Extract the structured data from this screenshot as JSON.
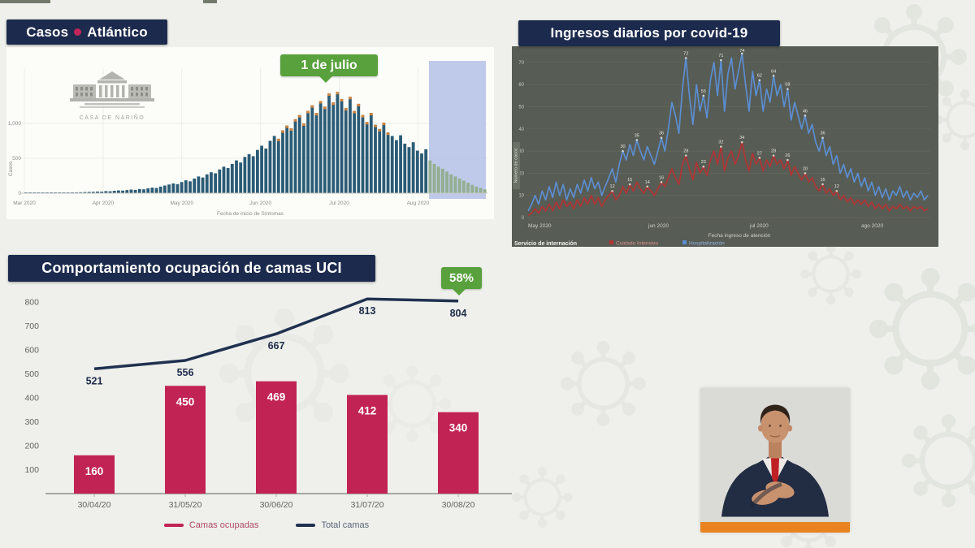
{
  "frame": {
    "casos_title": "Casos",
    "casos_region": "Atlántico",
    "logo_caption": "CASA DE NARIÑO",
    "julio_badge": "1 de julio",
    "ingresos_title": "Ingresos diarios por covid-19",
    "uci_title": "Comportamiento ocupación de camas UCI",
    "uci_badge": "58%"
  },
  "chart_data": [
    {
      "id": "casos-epidemic-curve",
      "type": "bar",
      "title": "Casos Atlántico",
      "xlabel": "Fecha de inicio de Síntomas",
      "ylabel": "Casos",
      "x_tick_labels": [
        "Mar 2020",
        "Apr 2020",
        "May 2020",
        "Jun 2020",
        "Jul 2020",
        "Aug 2020"
      ],
      "yticks": [
        0,
        500,
        1000
      ],
      "ytick_labels": [
        "0",
        "500",
        "1,000"
      ],
      "annotation": "1 de julio",
      "bar_color": "#2b5b76",
      "tip_color": "#d2853e",
      "orange_tip_range": [
        60,
        86
      ],
      "highlight_color": "#b8c4e8",
      "highlight_bar_color": "#93ae90",
      "highlight_start_index": 96,
      "values": [
        2,
        3,
        2,
        4,
        3,
        5,
        4,
        6,
        8,
        7,
        10,
        12,
        10,
        14,
        16,
        18,
        20,
        24,
        22,
        30,
        28,
        35,
        40,
        38,
        45,
        52,
        48,
        60,
        56,
        70,
        80,
        75,
        95,
        110,
        125,
        140,
        130,
        160,
        185,
        170,
        210,
        240,
        225,
        270,
        300,
        285,
        340,
        380,
        360,
        420,
        470,
        440,
        520,
        560,
        530,
        620,
        680,
        640,
        750,
        820,
        780,
        900,
        970,
        930,
        1060,
        1120,
        1000,
        1180,
        1260,
        1150,
        1320,
        1240,
        1430,
        1300,
        1450,
        1350,
        1220,
        1380,
        1180,
        1280,
        1120,
        1020,
        1150,
        980,
        920,
        1010,
        870,
        820,
        760,
        830,
        710,
        660,
        730,
        610,
        570,
        630,
        470,
        420,
        380,
        350,
        310,
        270,
        240,
        210,
        180,
        150,
        120,
        95,
        75,
        55
      ]
    },
    {
      "id": "ingresos-diarios",
      "type": "line",
      "title": "Ingresos diarios por covid-19",
      "xlabel": "Fecha ingreso de atención",
      "ylabel": "Número de casos",
      "x_tick_labels": [
        "May 2020",
        "jun 2020",
        "jul 2020",
        "ago 2020"
      ],
      "yticks": [
        0,
        10,
        20,
        30,
        40,
        50,
        60,
        70
      ],
      "legend_title": "Servicio de internación",
      "series": [
        {
          "name": "Cuidado Intensivo",
          "color": "#b23434",
          "values": [
            1,
            2,
            4,
            2,
            5,
            3,
            6,
            3,
            7,
            4,
            8,
            5,
            7,
            4,
            8,
            5,
            9,
            6,
            10,
            6,
            9,
            5,
            8,
            10,
            12,
            8,
            10,
            14,
            11,
            15,
            12,
            16,
            13,
            11,
            14,
            12,
            10,
            13,
            16,
            14,
            18,
            22,
            18,
            15,
            24,
            28,
            22,
            17,
            25,
            20,
            23,
            19,
            26,
            30,
            24,
            32,
            21,
            27,
            30,
            24,
            28,
            34,
            26,
            21,
            29,
            24,
            27,
            21,
            26,
            23,
            28,
            24,
            26,
            22,
            26,
            19,
            23,
            20,
            17,
            20,
            16,
            18,
            14,
            12,
            15,
            11,
            13,
            10,
            12,
            8,
            10,
            7,
            9,
            6,
            8,
            6,
            8,
            5,
            7,
            4,
            6,
            4,
            6,
            3,
            5,
            4,
            6,
            4,
            5,
            3,
            5,
            4,
            5,
            3,
            4
          ]
        },
        {
          "name": "Hospitalización",
          "color": "#5b8ed2",
          "values": [
            3,
            6,
            10,
            6,
            12,
            8,
            14,
            9,
            16,
            10,
            15,
            8,
            13,
            9,
            15,
            11,
            17,
            12,
            18,
            13,
            16,
            10,
            14,
            18,
            22,
            16,
            24,
            30,
            26,
            33,
            28,
            35,
            30,
            26,
            32,
            28,
            24,
            30,
            36,
            30,
            40,
            52,
            46,
            38,
            58,
            72,
            55,
            42,
            60,
            48,
            55,
            45,
            62,
            70,
            55,
            71,
            48,
            65,
            72,
            58,
            66,
            74,
            60,
            48,
            66,
            55,
            62,
            48,
            58,
            52,
            64,
            55,
            60,
            50,
            58,
            44,
            52,
            46,
            40,
            46,
            38,
            42,
            34,
            30,
            36,
            28,
            32,
            24,
            28,
            20,
            24,
            18,
            22,
            16,
            20,
            14,
            18,
            12,
            16,
            10,
            14,
            9,
            13,
            8,
            12,
            10,
            14,
            9,
            12,
            8,
            11,
            9,
            12,
            8,
            10
          ]
        }
      ]
    },
    {
      "id": "uci-camas",
      "type": "bar+line",
      "title": "Comportamiento ocupación de camas UCI",
      "categories": [
        "30/04/20",
        "31/05/20",
        "30/06/20",
        "31/07/20",
        "30/08/20"
      ],
      "yticks": [
        100,
        200,
        300,
        400,
        500,
        600,
        700,
        800
      ],
      "occupancy_badge": "58%",
      "series": [
        {
          "name": "Camas ocupadas",
          "type": "bar",
          "color": "#c12454",
          "values": [
            160,
            450,
            469,
            412,
            340
          ]
        },
        {
          "name": "Total camas",
          "type": "line",
          "color": "#203150",
          "values": [
            521,
            556,
            667,
            813,
            804
          ]
        }
      ]
    }
  ]
}
